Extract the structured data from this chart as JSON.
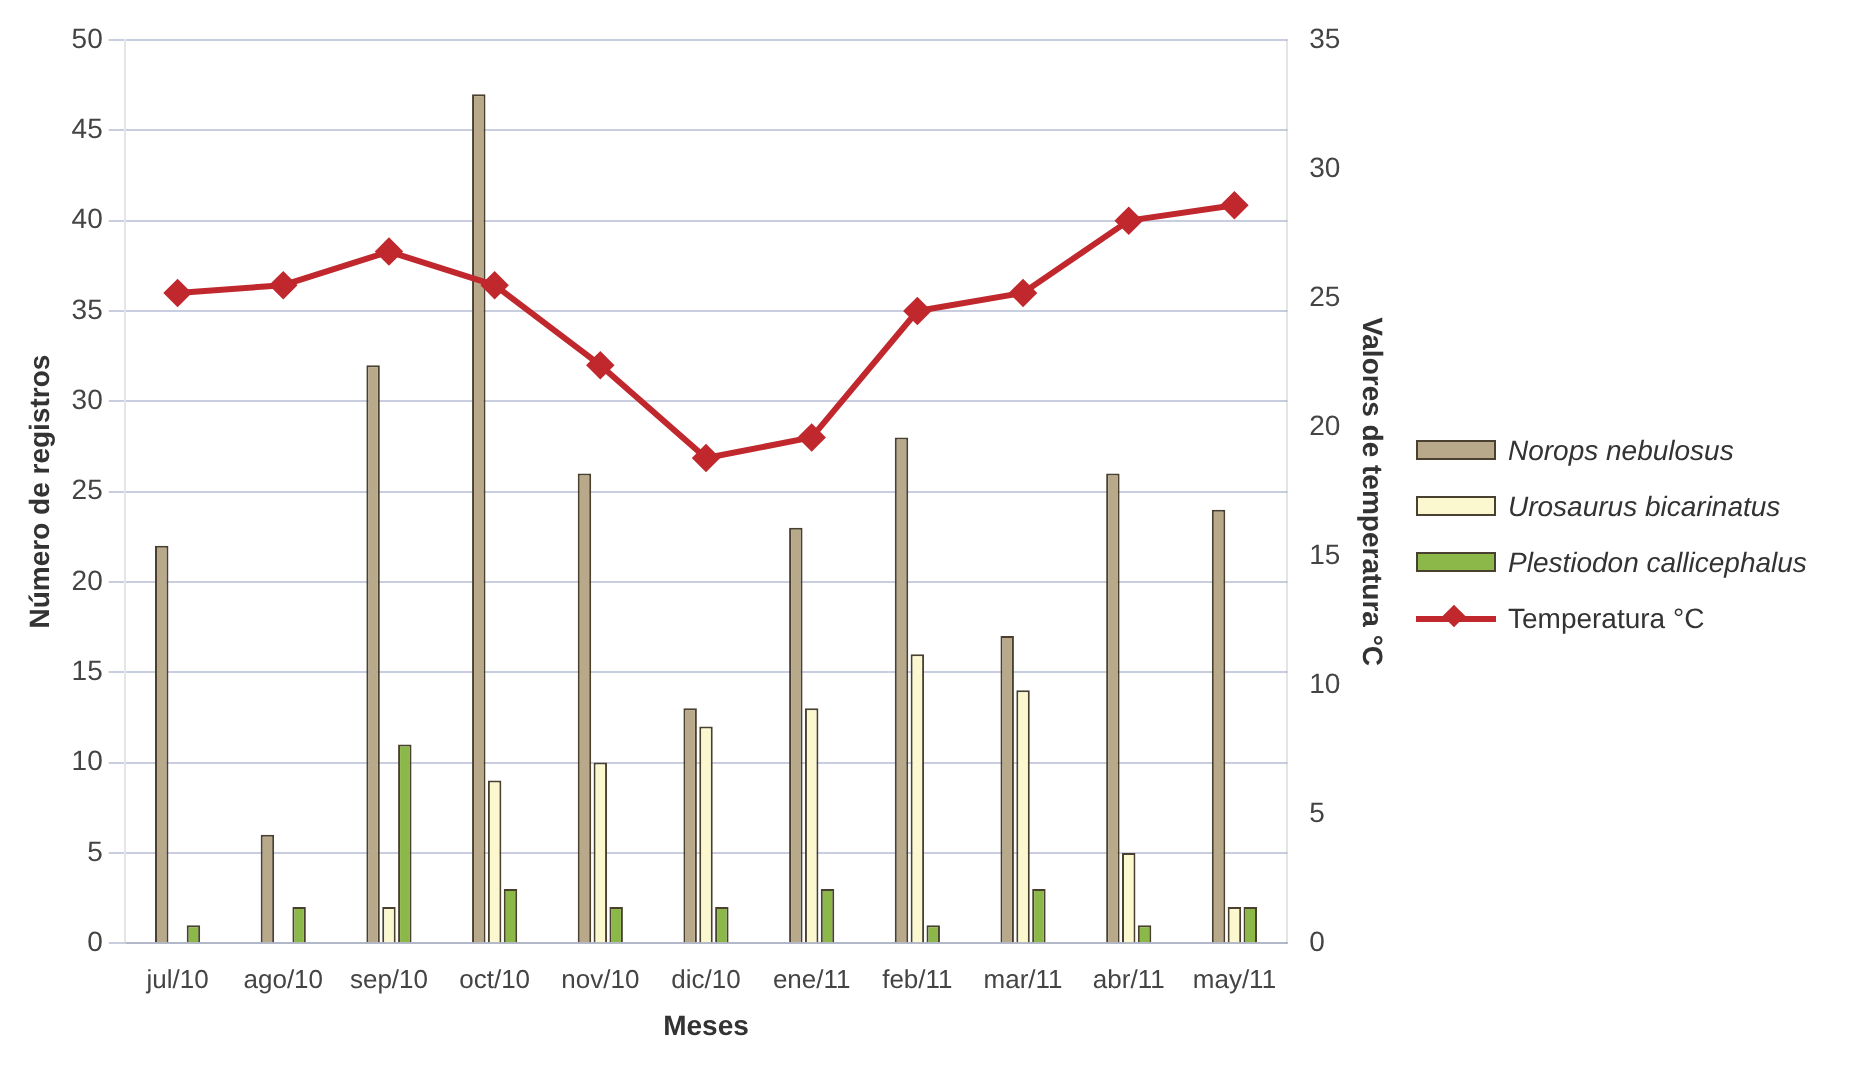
{
  "chart_data": {
    "type": "bar",
    "xlabel": "Meses",
    "ylabel": "Número de registros",
    "y2label": "Valores de temperatura °C",
    "categories": [
      "jul/10",
      "ago/10",
      "sep/10",
      "oct/10",
      "nov/10",
      "dic/10",
      "ene/11",
      "feb/11",
      "mar/11",
      "abr/11",
      "may/11"
    ],
    "series": [
      {
        "name": "Norops nebulosus",
        "color": "#b8a98a",
        "values": [
          22,
          6,
          32,
          47,
          26,
          13,
          23,
          28,
          17,
          26,
          24
        ]
      },
      {
        "name": "Urosaurus bicarinatus",
        "color": "#fbf8d0",
        "values": [
          0,
          0,
          2,
          9,
          10,
          12,
          13,
          16,
          14,
          5,
          2
        ]
      },
      {
        "name": "Plestiodon callicephalus",
        "color": "#8cb84a",
        "values": [
          1,
          2,
          11,
          3,
          2,
          2,
          3,
          1,
          3,
          1,
          2
        ]
      },
      {
        "name": "Temperatura °C",
        "type": "line",
        "axis": "y2",
        "color": "#c0282d",
        "marker": "diamond",
        "values": [
          25.2,
          25.5,
          26.8,
          25.5,
          22.4,
          18.8,
          19.6,
          24.5,
          25.2,
          28,
          28.6
        ]
      }
    ],
    "ylim": [
      0,
      50
    ],
    "yticks": [
      0,
      5,
      10,
      15,
      20,
      25,
      30,
      35,
      40,
      45,
      50
    ],
    "y2lim": [
      0,
      35
    ],
    "y2ticks": [
      0,
      5,
      10,
      15,
      20,
      25,
      30,
      35
    ],
    "grid": "y",
    "legend": "right"
  }
}
